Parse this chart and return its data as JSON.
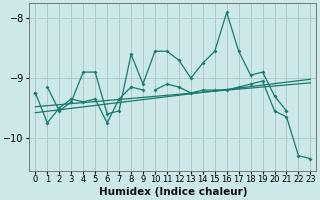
{
  "xlabel": "Humidex (Indice chaleur)",
  "ylabel": "",
  "background_color": "#cce8e8",
  "grid_color": "#aacccc",
  "line_color": "#1a7a6e",
  "xlim": [
    -0.5,
    23.5
  ],
  "ylim": [
    -10.55,
    -7.75
  ],
  "yticks": [
    -10,
    -9,
    -8
  ],
  "xticks": [
    0,
    1,
    2,
    3,
    4,
    5,
    6,
    7,
    8,
    9,
    10,
    11,
    12,
    13,
    14,
    15,
    16,
    17,
    18,
    19,
    20,
    21,
    22,
    23
  ],
  "series": [
    {
      "x": [
        1,
        2,
        3,
        4,
        5,
        6,
        7,
        8,
        9,
        10,
        11,
        12,
        13,
        14,
        15,
        16,
        17,
        18,
        19,
        20,
        21
      ],
      "y": [
        -9.15,
        -9.55,
        -9.4,
        -8.9,
        -8.9,
        -9.6,
        -9.55,
        -8.6,
        -9.1,
        -8.55,
        -8.55,
        -8.7,
        -9.0,
        -8.75,
        -8.55,
        -7.9,
        -8.55,
        -8.95,
        -8.9,
        -9.3,
        -9.55
      ]
    },
    {
      "x": [
        0,
        1,
        2,
        3,
        4,
        5,
        6,
        7,
        8,
        9
      ],
      "y": [
        -9.25,
        -9.75,
        -9.5,
        -9.35,
        -9.4,
        -9.35,
        -9.75,
        -9.35,
        -9.15,
        -9.2
      ]
    },
    {
      "x": [
        10,
        11,
        12,
        13,
        14,
        15,
        16,
        17,
        18,
        19,
        20,
        21,
        22,
        23
      ],
      "y": [
        -9.2,
        -9.1,
        -9.15,
        -9.25,
        -9.2,
        -9.2,
        -9.2,
        -9.15,
        -9.1,
        -9.05,
        -9.55,
        -9.65,
        -10.3,
        -10.35
      ]
    },
    {
      "x": [
        0
      ],
      "y": [
        -9.25
      ]
    }
  ],
  "regression_lines": [
    {
      "x0": 0,
      "y0": -9.58,
      "x1": 23,
      "y1": -9.02
    },
    {
      "x0": 0,
      "y0": -9.48,
      "x1": 23,
      "y1": -9.08
    }
  ]
}
